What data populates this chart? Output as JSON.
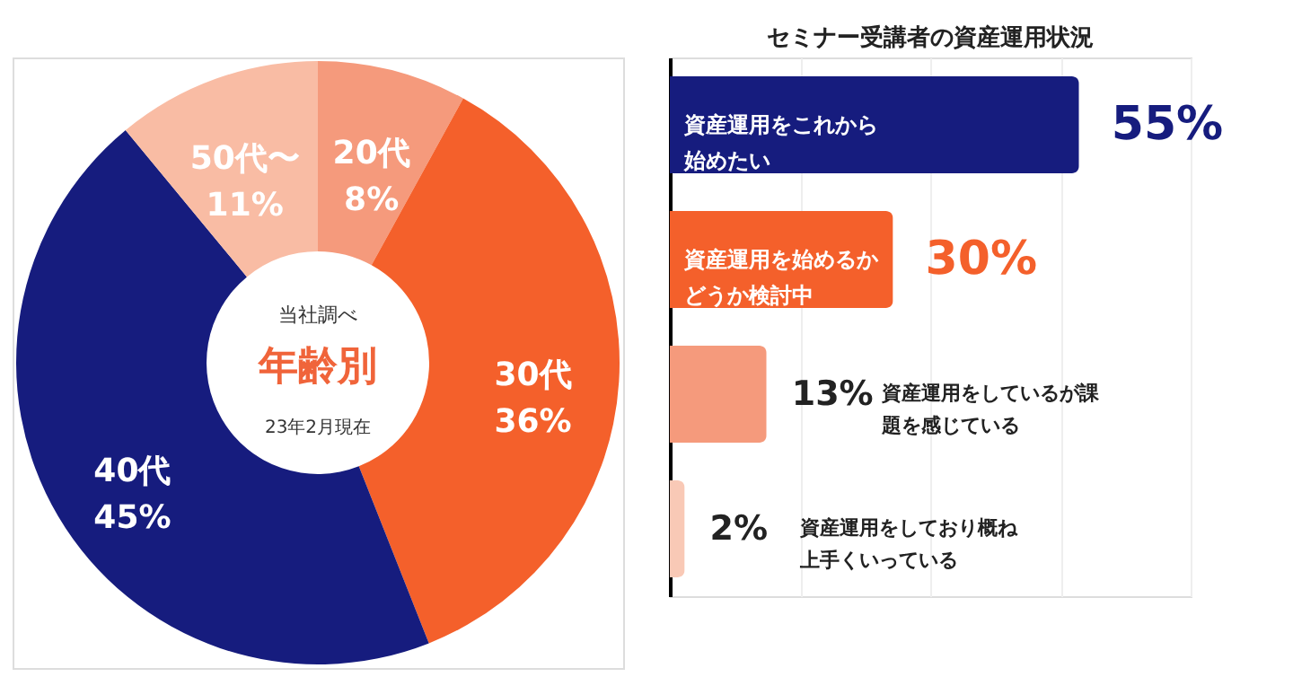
{
  "chart_data": [
    {
      "type": "donut",
      "title": "年齢別",
      "annotations": [
        "当社調べ",
        "23年2月現在"
      ],
      "categories": [
        "20代",
        "30代",
        "40代",
        "50代〜"
      ],
      "values": [
        8,
        36,
        45,
        11
      ],
      "value_labels": [
        "8%",
        "36%",
        "45%",
        "11%"
      ],
      "colors": [
        "#f59a7c",
        "#f4602b",
        "#161c7e",
        "#f9bca4"
      ],
      "legend": false
    },
    {
      "type": "bar",
      "orientation": "horizontal",
      "title": "セミナー受講者の資産運用状況",
      "categories": [
        "資産運用をこれから始めたい",
        "資産運用を始めるかどうか検討中",
        "資産運用をしているが課題を感じている",
        "資産運用をしており概ね上手くいっている"
      ],
      "values": [
        55,
        30,
        13,
        2
      ],
      "value_labels": [
        "55%",
        "30%",
        "13%",
        "2%"
      ],
      "colors": [
        "#161c7e",
        "#f4602b",
        "#f59a7c",
        "#f9c9b6"
      ],
      "xlim": [
        0,
        70
      ],
      "xticks": [
        {
          "value": 17.5,
          "label": null
        },
        {
          "value": 35,
          "label": null
        },
        {
          "value": 52.5,
          "label": null
        },
        {
          "value": 70,
          "label": null
        }
      ],
      "grid": "x",
      "legend": false,
      "tick_labels": false
    }
  ]
}
